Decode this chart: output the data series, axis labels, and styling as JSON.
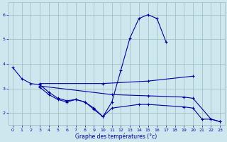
{
  "xlabel": "Graphe des températures (°c)",
  "background_color": "#cce8ee",
  "grid_color": "#99bbbb",
  "line_color": "#0000aa",
  "xlim": [
    -0.5,
    23.5
  ],
  "ylim": [
    1.5,
    6.5
  ],
  "yticks": [
    2,
    3,
    4,
    5,
    6
  ],
  "xticks": [
    0,
    1,
    2,
    3,
    4,
    5,
    6,
    7,
    8,
    9,
    10,
    11,
    12,
    13,
    14,
    15,
    16,
    17,
    18,
    19,
    20,
    21,
    22,
    23
  ],
  "lines": [
    {
      "x": [
        0,
        1,
        2,
        3,
        4,
        5,
        6,
        7,
        8,
        9,
        10,
        11,
        12,
        13,
        14,
        15,
        16,
        17
      ],
      "y": [
        3.85,
        3.4,
        3.2,
        3.15,
        2.85,
        2.6,
        2.5,
        2.55,
        2.45,
        2.2,
        1.85,
        2.45,
        3.75,
        5.05,
        5.85,
        6.0,
        5.85,
        4.9
      ]
    },
    {
      "x": [
        3,
        10,
        15,
        20
      ],
      "y": [
        3.2,
        3.2,
        3.3,
        3.5
      ]
    },
    {
      "x": [
        3,
        11,
        15,
        19,
        20,
        22,
        23
      ],
      "y": [
        3.1,
        2.75,
        2.7,
        2.65,
        2.6,
        1.75,
        1.65
      ]
    },
    {
      "x": [
        3,
        4,
        5,
        6,
        7,
        8,
        9,
        10,
        11,
        14,
        15,
        19,
        20,
        21,
        22,
        23
      ],
      "y": [
        3.05,
        2.75,
        2.55,
        2.45,
        2.55,
        2.45,
        2.15,
        1.85,
        2.2,
        2.35,
        2.35,
        2.25,
        2.2,
        1.75,
        1.75,
        1.65
      ]
    }
  ]
}
